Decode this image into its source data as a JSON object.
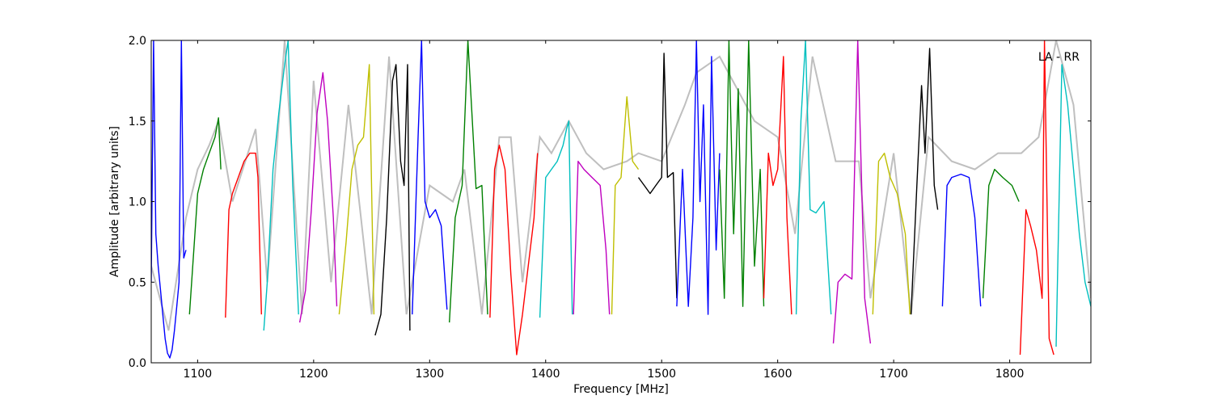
{
  "chart_data": {
    "type": "line",
    "annotation": "LA - RR",
    "xlabel": "Frequency [MHz]",
    "ylabel": "Amplitude [arbitrary units]",
    "xlim": [
      1060,
      1870
    ],
    "ylim": [
      0.0,
      2.0
    ],
    "x_ticks": [
      1100,
      1200,
      1300,
      1400,
      1500,
      1600,
      1700,
      1800
    ],
    "x_tick_labels": [
      "1100",
      "1200",
      "1300",
      "1400",
      "1500",
      "1600",
      "1700",
      "1800"
    ],
    "y_ticks": [
      0.0,
      0.5,
      1.0,
      1.5,
      2.0
    ],
    "y_tick_labels": [
      "0.0",
      "0.5",
      "1.0",
      "1.5",
      "2.0"
    ],
    "grid": false,
    "colors": {
      "background_envelope": "#bfbfbf",
      "blue": "#0000ff",
      "green": "#008000",
      "red": "#ff0000",
      "cyan": "#00bfbf",
      "magenta": "#bf00bf",
      "olive": "#bfbf00",
      "black": "#000000"
    },
    "background_envelope": {
      "x": [
        1060,
        1075,
        1090,
        1100,
        1110,
        1118,
        1130,
        1150,
        1160,
        1175,
        1190,
        1200,
        1215,
        1230,
        1250,
        1265,
        1280,
        1300,
        1320,
        1330,
        1345,
        1360,
        1370,
        1380,
        1395,
        1405,
        1420,
        1435,
        1450,
        1470,
        1480,
        1500,
        1520,
        1530,
        1550,
        1565,
        1580,
        1600,
        1615,
        1630,
        1650,
        1670,
        1680,
        1700,
        1715,
        1730,
        1750,
        1770,
        1790,
        1810,
        1825,
        1840,
        1855,
        1870
      ],
      "y": [
        0.6,
        0.2,
        0.9,
        1.2,
        1.35,
        1.5,
        1.0,
        1.45,
        0.5,
        2.0,
        0.3,
        1.75,
        0.5,
        1.6,
        0.3,
        1.9,
        0.3,
        1.1,
        1.0,
        1.2,
        0.3,
        1.4,
        1.4,
        0.5,
        1.4,
        1.3,
        1.5,
        1.3,
        1.2,
        1.25,
        1.3,
        1.25,
        1.6,
        1.8,
        1.9,
        1.7,
        1.5,
        1.4,
        0.8,
        1.9,
        1.25,
        1.25,
        0.4,
        1.3,
        0.3,
        1.4,
        1.25,
        1.2,
        1.3,
        1.3,
        1.4,
        2.0,
        1.6,
        0.4
      ]
    },
    "series": [
      {
        "color": "blue",
        "x": [
          1060,
          1062,
          1064,
          1066,
          1068,
          1070,
          1072,
          1074,
          1076,
          1078,
          1080,
          1082,
          1084,
          1086,
          1088,
          1090
        ],
        "y": [
          0.5,
          2.0,
          0.8,
          0.6,
          0.45,
          0.3,
          0.15,
          0.06,
          0.03,
          0.08,
          0.2,
          0.35,
          0.5,
          2.0,
          0.65,
          0.7
        ]
      },
      {
        "color": "green",
        "x": [
          1093,
          1100,
          1105,
          1110,
          1115,
          1118,
          1120
        ],
        "y": [
          0.3,
          1.05,
          1.2,
          1.3,
          1.4,
          1.52,
          1.2
        ]
      },
      {
        "color": "red",
        "x": [
          1124,
          1127,
          1130,
          1135,
          1140,
          1145,
          1150,
          1152,
          1155
        ],
        "y": [
          0.28,
          0.95,
          1.05,
          1.15,
          1.25,
          1.3,
          1.3,
          1.15,
          0.3
        ]
      },
      {
        "color": "cyan",
        "x": [
          1157,
          1160,
          1165,
          1170,
          1175,
          1178,
          1182,
          1187
        ],
        "y": [
          0.2,
          0.5,
          1.2,
          1.55,
          1.85,
          2.0,
          1.1,
          0.3
        ]
      },
      {
        "color": "magenta",
        "x": [
          1188,
          1193,
          1198,
          1203,
          1208,
          1212,
          1217,
          1220
        ],
        "y": [
          0.25,
          0.45,
          0.95,
          1.55,
          1.8,
          1.5,
          0.9,
          0.35
        ]
      },
      {
        "color": "olive",
        "x": [
          1222,
          1228,
          1233,
          1238,
          1243,
          1248,
          1252
        ],
        "y": [
          0.3,
          0.75,
          1.2,
          1.35,
          1.4,
          1.85,
          0.3
        ]
      },
      {
        "color": "black",
        "x": [
          1253,
          1258,
          1263,
          1268,
          1271,
          1275,
          1278,
          1281,
          1283
        ],
        "y": [
          0.17,
          0.3,
          0.9,
          1.75,
          1.85,
          1.25,
          1.1,
          1.85,
          0.2
        ]
      },
      {
        "color": "blue",
        "x": [
          1285,
          1290,
          1293,
          1296,
          1300,
          1305,
          1310,
          1315
        ],
        "y": [
          0.3,
          1.4,
          2.0,
          1.0,
          0.9,
          0.95,
          0.85,
          0.33
        ]
      },
      {
        "color": "green",
        "x": [
          1317,
          1322,
          1328,
          1333,
          1340,
          1345,
          1350
        ],
        "y": [
          0.25,
          0.9,
          1.1,
          2.0,
          1.08,
          1.1,
          0.3
        ]
      },
      {
        "color": "red",
        "x": [
          1352,
          1356,
          1360,
          1365,
          1370,
          1375,
          1380,
          1385,
          1390,
          1393
        ],
        "y": [
          0.28,
          1.2,
          1.35,
          1.2,
          0.55,
          0.05,
          0.3,
          0.6,
          0.9,
          1.3
        ]
      },
      {
        "color": "cyan",
        "x": [
          1395,
          1400,
          1405,
          1410,
          1415,
          1418,
          1420,
          1423
        ],
        "y": [
          0.28,
          1.15,
          1.2,
          1.25,
          1.35,
          1.45,
          1.5,
          0.3
        ]
      },
      {
        "color": "magenta",
        "x": [
          1424,
          1428,
          1433,
          1440,
          1447,
          1452,
          1455
        ],
        "y": [
          0.3,
          1.25,
          1.2,
          1.15,
          1.1,
          0.7,
          0.3
        ]
      },
      {
        "color": "olive",
        "x": [
          1457,
          1460,
          1465,
          1470,
          1475,
          1480
        ],
        "y": [
          0.3,
          1.1,
          1.15,
          1.65,
          1.25,
          1.2
        ]
      },
      {
        "color": "black",
        "x": [
          1480,
          1485,
          1490,
          1495,
          1500,
          1502,
          1505,
          1510,
          1513
        ],
        "y": [
          1.15,
          1.1,
          1.05,
          1.1,
          1.15,
          1.92,
          1.15,
          1.18,
          0.4
        ]
      },
      {
        "color": "blue",
        "x": [
          1513,
          1518,
          1523,
          1527,
          1530,
          1533,
          1536,
          1540,
          1543,
          1547,
          1550
        ],
        "y": [
          0.35,
          1.2,
          0.35,
          0.9,
          2.0,
          1.0,
          1.6,
          0.3,
          1.9,
          0.7,
          1.3
        ]
      },
      {
        "color": "green",
        "x": [
          1550,
          1554,
          1558,
          1562,
          1566,
          1570,
          1575,
          1580,
          1585,
          1588
        ],
        "y": [
          1.2,
          0.4,
          2.0,
          0.8,
          1.7,
          0.35,
          2.0,
          0.6,
          1.2,
          0.35
        ]
      },
      {
        "color": "red",
        "x": [
          1588,
          1592,
          1596,
          1600,
          1605,
          1608,
          1612
        ],
        "y": [
          0.4,
          1.3,
          1.1,
          1.2,
          1.9,
          0.9,
          0.3
        ]
      },
      {
        "color": "cyan",
        "x": [
          1616,
          1620,
          1624,
          1628,
          1633,
          1640,
          1646
        ],
        "y": [
          0.3,
          1.5,
          2.0,
          0.95,
          0.93,
          1.0,
          0.3
        ]
      },
      {
        "color": "magenta",
        "x": [
          1648,
          1652,
          1658,
          1664,
          1669,
          1675,
          1680
        ],
        "y": [
          0.12,
          0.5,
          0.55,
          0.52,
          2.0,
          0.4,
          0.12
        ]
      },
      {
        "color": "olive",
        "x": [
          1682,
          1687,
          1692,
          1697,
          1703,
          1710,
          1714
        ],
        "y": [
          0.3,
          1.25,
          1.3,
          1.15,
          1.05,
          0.8,
          0.3
        ]
      },
      {
        "color": "black",
        "x": [
          1715,
          1720,
          1724,
          1727,
          1731,
          1735,
          1738
        ],
        "y": [
          0.3,
          1.1,
          1.72,
          1.3,
          1.95,
          1.1,
          0.95
        ]
      },
      {
        "color": "blue",
        "x": [
          1742,
          1746,
          1750,
          1758,
          1765,
          1770,
          1775
        ],
        "y": [
          0.35,
          1.1,
          1.15,
          1.17,
          1.15,
          0.9,
          0.35
        ]
      },
      {
        "color": "green",
        "x": [
          1777,
          1782,
          1787,
          1794,
          1802,
          1808
        ],
        "y": [
          0.4,
          1.1,
          1.2,
          1.15,
          1.1,
          1.0
        ]
      },
      {
        "color": "red",
        "x": [
          1809,
          1814,
          1818,
          1823,
          1828,
          1830,
          1834,
          1838
        ],
        "y": [
          0.05,
          0.95,
          0.85,
          0.7,
          0.4,
          2.0,
          0.15,
          0.05
        ]
      },
      {
        "color": "cyan",
        "x": [
          1840,
          1845,
          1850,
          1855,
          1860,
          1865,
          1870
        ],
        "y": [
          0.1,
          1.85,
          1.6,
          1.2,
          0.8,
          0.5,
          0.35
        ]
      }
    ]
  }
}
